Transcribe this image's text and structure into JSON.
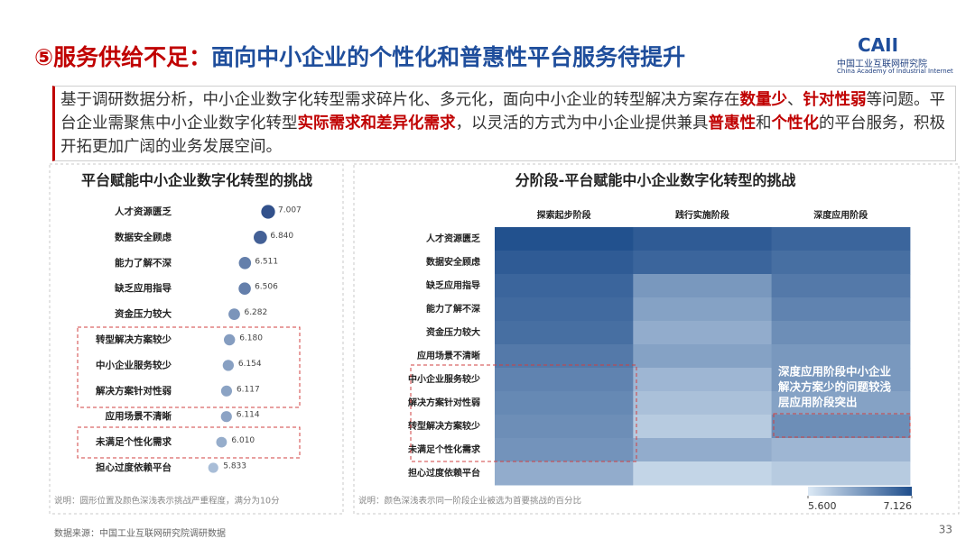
{
  "header": {
    "title_prefix": "⑤服务供给不足：",
    "title": "面向中小企业的个性化和普惠性平台服务待提升",
    "logo": "CAII",
    "logo_cn": "中国工业互联网研究院",
    "logo_en": "China Academy of Industrial Internet"
  },
  "intro": [
    {
      "text": "基于调研数据分析，中小企业数字化转型需求碎片化、多元化，面向中小企业的转型解决方案存在"
    },
    {
      "text": "数量少",
      "emphasis": true
    },
    {
      "text": "、"
    },
    {
      "text": "针对性弱",
      "emphasis": true
    },
    {
      "text": "等问题。平台企业需聚焦中小企业数字化转型"
    },
    {
      "text": "实际需求和差异化需求",
      "emphasis": true
    },
    {
      "text": "，以灵活的方式为中小企业提供兼具"
    },
    {
      "text": "普惠性",
      "emphasis": true
    },
    {
      "text": "和"
    },
    {
      "text": "个性化",
      "emphasis": true
    },
    {
      "text": "的平台服务，积极开拓更加广阔的业务发展空间。"
    }
  ],
  "chart_data": [
    {
      "type": "dot",
      "title": "平台赋能中小企业数字化转型的挑战",
      "categories": [
        "人才资源匮乏",
        "数据安全顾虑",
        "能力了解不深",
        "缺乏应用指导",
        "资金压力较大",
        "转型解决方案较少",
        "中小企业服务较少",
        "解决方案针对性弱",
        "应用场景不清晰",
        "未满足个性化需求",
        "担心过度依赖平台"
      ],
      "values": [
        7.007,
        6.84,
        6.511,
        6.506,
        6.282,
        6.18,
        6.154,
        6.117,
        6.114,
        6.01,
        5.833
      ],
      "value_labels": [
        "7.007",
        "6.840",
        "6.511",
        "6.506",
        "6.282",
        "6.180",
        "6.154",
        "6.117",
        "6.114",
        "6.010",
        "5.833"
      ],
      "xlim": [
        5.5,
        7.2
      ],
      "color_range": [
        "#c9dcec",
        "#1f3f7f"
      ],
      "note": "说明：圆形位置及颜色深浅表示挑战严重程度，满分为10分"
    },
    {
      "type": "heatmap",
      "title": "分阶段-平台赋能中小企业数字化转型的挑战",
      "x": [
        "探索起步阶段",
        "践行实施阶段",
        "深度应用阶段"
      ],
      "y": [
        "人才资源匮乏",
        "数据安全顾虑",
        "缺乏应用指导",
        "能力了解不深",
        "资金压力较大",
        "应用场景不清晰",
        "中小企业服务较少",
        "解决方案针对性弱",
        "转型解决方案较少",
        "未满足个性化需求",
        "担心过度依赖平台"
      ],
      "z": [
        [
          7.1,
          7.0,
          6.9
        ],
        [
          7.0,
          6.9,
          6.8
        ],
        [
          6.9,
          6.4,
          6.7
        ],
        [
          6.85,
          6.3,
          6.6
        ],
        [
          6.8,
          6.2,
          6.5
        ],
        [
          6.7,
          6.3,
          6.4
        ],
        [
          6.6,
          6.1,
          6.4
        ],
        [
          6.55,
          6.0,
          6.3
        ],
        [
          6.5,
          5.9,
          6.5
        ],
        [
          6.45,
          6.2,
          6.1
        ],
        [
          6.2,
          5.8,
          5.9
        ]
      ],
      "zlim": [
        5.6,
        7.126
      ],
      "zticks": [
        {
          "value": 5.6,
          "label": "5.600"
        },
        {
          "value": 7.126,
          "label": "7.126"
        }
      ],
      "color_range": [
        "#dce9f5",
        "#1f4e8c"
      ],
      "annotation": [
        "深度应用阶段中小企业",
        "解决方案少的问题较浅",
        "层应用阶段突出"
      ],
      "note": "说明：颜色深浅表示同一阶段企业被选为首要挑战的百分比"
    }
  ],
  "footer": {
    "source": "数据来源：中国工业互联网研究院调研数据",
    "page": "33"
  }
}
